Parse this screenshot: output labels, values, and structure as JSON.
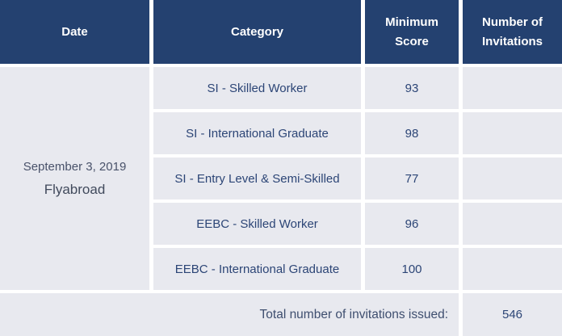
{
  "colors": {
    "header_bg": "#244170",
    "header_text": "#FFFFFF",
    "cell_bg": "#E8E9EF",
    "body_text": "#2C4576",
    "date_text": "#49526A",
    "gap": "#FFFFFF"
  },
  "table": {
    "headers": [
      "Date",
      "Category",
      "Minimum Score",
      "Number of Invitations"
    ],
    "date_cell": {
      "date": "September 3, 2019",
      "brand": "Flyabroad"
    },
    "rows": [
      {
        "category": "SI - Skilled Worker",
        "minimum_score": "93",
        "invitations": ""
      },
      {
        "category": "SI - International Graduate",
        "minimum_score": "98",
        "invitations": ""
      },
      {
        "category": "SI - Entry Level & Semi-Skilled",
        "minimum_score": "77",
        "invitations": ""
      },
      {
        "category": "EEBC - Skilled Worker",
        "minimum_score": "96",
        "invitations": ""
      },
      {
        "category": "EEBC - International Graduate",
        "minimum_score": "100",
        "invitations": ""
      }
    ],
    "footer": {
      "label": "Total number of invitations issued:",
      "total": "546"
    }
  },
  "chart_data": {
    "type": "table",
    "columns": [
      "Date",
      "Category",
      "Minimum Score",
      "Number of Invitations"
    ],
    "rows": [
      [
        "September 3, 2019",
        "SI - Skilled Worker",
        93,
        ""
      ],
      [
        "September 3, 2019",
        "SI - International Graduate",
        98,
        ""
      ],
      [
        "September 3, 2019",
        "SI - Entry Level & Semi-Skilled",
        77,
        ""
      ],
      [
        "September 3, 2019",
        "EEBC - Skilled Worker",
        96,
        ""
      ],
      [
        "September 3, 2019",
        "EEBC - International Graduate",
        100,
        ""
      ]
    ],
    "footer_label": "Total number of invitations issued:",
    "total_invitations": 546,
    "watermark": "Flyabroad",
    "layout": "header row navy, merged date cell spans 5 rows, invitations column cells empty, totals row at bottom"
  }
}
